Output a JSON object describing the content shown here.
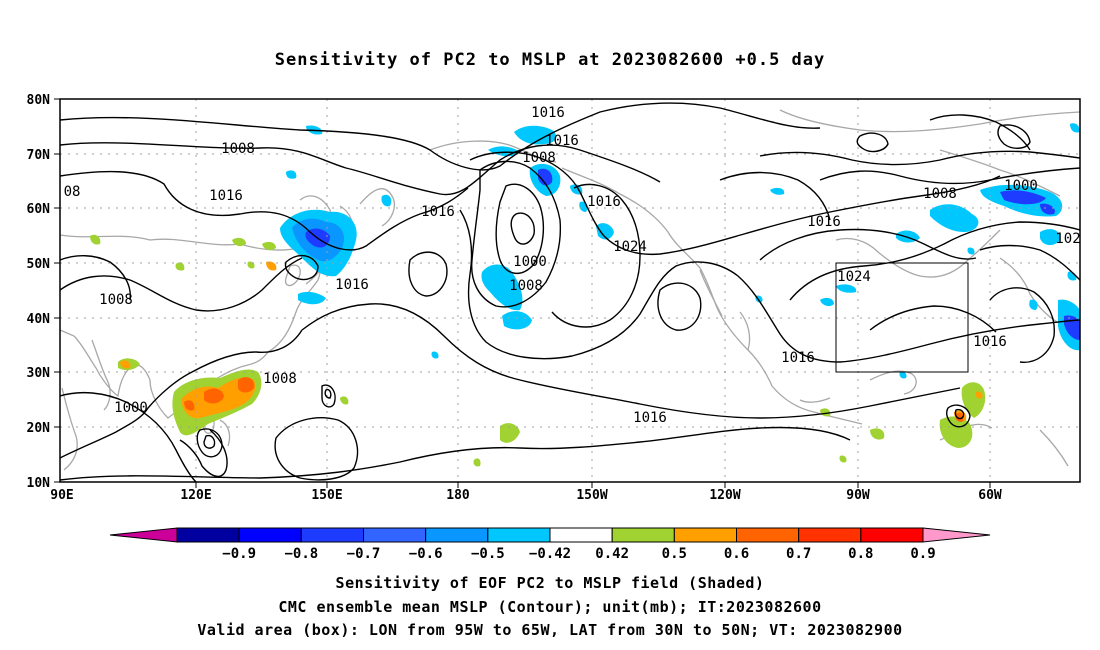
{
  "title": "Sensitivity of PC2 to MSLP at 2023082600 +0.5 day",
  "lat_axis": [
    "80N",
    "70N",
    "60N",
    "50N",
    "40N",
    "30N",
    "20N",
    "10N"
  ],
  "lon_axis": [
    "90E",
    "120E",
    "150E",
    "180",
    "150W",
    "120W",
    "90W",
    "60W"
  ],
  "isobar_labels": [
    "1016",
    "1016",
    "1008",
    "1008",
    "08",
    "1016",
    "1016",
    "1016",
    "1024",
    "1000",
    "1008",
    "1016",
    "1008",
    "1016",
    "1008",
    "1000",
    "1016",
    "1024",
    "1016",
    "1016",
    "1008",
    "1000",
    "1016",
    "102"
  ],
  "colorbar": {
    "colors": [
      "#cc0099",
      "#0000a0",
      "#0000ff",
      "#1e3cff",
      "#3264ff",
      "#0a96ff",
      "#00c8ff",
      "#ffffff",
      "#a0d232",
      "#ffa000",
      "#ff6400",
      "#ff3200",
      "#ff0000",
      "#ff99cc"
    ],
    "labels": [
      "−0.9",
      "−0.8",
      "−0.7",
      "−0.6",
      "−0.5",
      "−0.42",
      "0.42",
      "0.5",
      "0.6",
      "0.7",
      "0.8",
      "0.9"
    ]
  },
  "captions": [
    "Sensitivity of EOF PC2 to MSLP field (Shaded)",
    "CMC ensemble mean MSLP (Contour); unit(mb); IT:2023082600",
    "Valid area (box): LON from 95W to 65W, LAT from 30N to 50N; VT: 2023082900"
  ]
}
